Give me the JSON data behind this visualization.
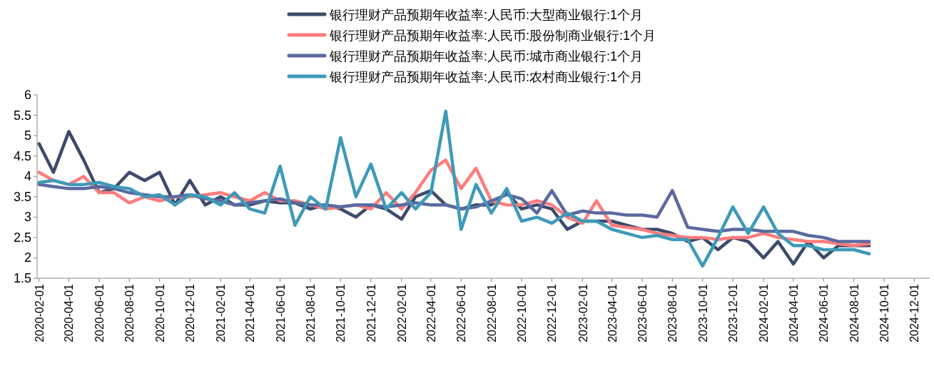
{
  "chart_data": {
    "type": "line",
    "legend": "top",
    "grid": false,
    "line_style": "solid",
    "marker": "none",
    "x": [
      "2020-02-01",
      "2020-03-01",
      "2020-04-01",
      "2020-05-01",
      "2020-06-01",
      "2020-07-01",
      "2020-08-01",
      "2020-09-01",
      "2020-10-01",
      "2020-11-01",
      "2020-12-01",
      "2021-01-01",
      "2021-02-01",
      "2021-03-01",
      "2021-04-01",
      "2021-05-01",
      "2021-06-01",
      "2021-07-01",
      "2021-08-01",
      "2021-09-01",
      "2021-10-01",
      "2021-11-01",
      "2021-12-01",
      "2022-01-01",
      "2022-02-01",
      "2022-03-01",
      "2022-04-01",
      "2022-05-01",
      "2022-06-01",
      "2022-07-01",
      "2022-08-01",
      "2022-09-01",
      "2022-10-01",
      "2022-11-01",
      "2022-12-01",
      "2023-01-01",
      "2023-02-01",
      "2023-03-01",
      "2023-04-01",
      "2023-05-01",
      "2023-06-01",
      "2023-07-01",
      "2023-08-01",
      "2023-09-01",
      "2023-10-01",
      "2023-11-01",
      "2023-12-01",
      "2024-01-01",
      "2024-02-01",
      "2024-03-01",
      "2024-04-01",
      "2024-05-01",
      "2024-06-01",
      "2024-07-01",
      "2024-08-01",
      "2024-09-01"
    ],
    "xlim": [
      "2020-01-28",
      "2025-01-01"
    ],
    "xticks": [
      "2020-02-01",
      "2020-04-01",
      "2020-06-01",
      "2020-08-01",
      "2020-10-01",
      "2020-12-01",
      "2021-02-01",
      "2021-04-01",
      "2021-06-01",
      "2021-08-01",
      "2021-10-01",
      "2021-12-01",
      "2022-02-01",
      "2022-04-01",
      "2022-06-01",
      "2022-08-01",
      "2022-10-01",
      "2022-12-01",
      "2023-02-01",
      "2023-04-01",
      "2023-06-01",
      "2023-08-01",
      "2023-10-01",
      "2023-12-01",
      "2024-02-01",
      "2024-04-01",
      "2024-06-01",
      "2024-08-01",
      "2024-10-01",
      "2024-12-01"
    ],
    "ylim": [
      1.5,
      6
    ],
    "yticks": [
      1.5,
      2,
      2.5,
      3,
      3.5,
      4,
      4.5,
      5,
      5.5,
      6
    ],
    "series": [
      {
        "name": "银行理财产品预期年收益率:人民币:大型商业银行:1个月",
        "color": "#3d4a6b",
        "values": [
          4.8,
          4.1,
          5.1,
          4.4,
          3.6,
          3.7,
          4.1,
          3.9,
          4.1,
          3.3,
          3.9,
          3.3,
          3.5,
          3.3,
          3.3,
          3.4,
          3.35,
          3.35,
          3.2,
          3.3,
          3.2,
          3.0,
          3.3,
          3.2,
          2.95,
          3.5,
          3.65,
          3.3,
          3.2,
          3.3,
          3.3,
          3.6,
          3.2,
          3.3,
          3.2,
          2.7,
          2.9,
          2.9,
          2.9,
          2.8,
          2.7,
          2.7,
          2.6,
          2.4,
          2.5,
          2.2,
          2.5,
          2.4,
          2.0,
          2.4,
          1.85,
          2.4,
          2.0,
          2.3,
          2.3,
          2.3
        ]
      },
      {
        "name": "银行理财产品预期年收益率:人民币:股份制商业银行:1个月",
        "color": "#ff7c7c",
        "values": [
          4.1,
          3.9,
          3.8,
          4.0,
          3.6,
          3.6,
          3.35,
          3.5,
          3.4,
          3.5,
          3.5,
          3.55,
          3.6,
          3.5,
          3.4,
          3.6,
          3.4,
          3.4,
          3.3,
          3.2,
          3.25,
          3.3,
          3.2,
          3.6,
          3.2,
          3.6,
          4.15,
          4.4,
          3.7,
          4.2,
          3.4,
          3.3,
          3.3,
          3.4,
          3.3,
          3.0,
          2.85,
          3.4,
          2.8,
          2.75,
          2.7,
          2.6,
          2.55,
          2.5,
          2.5,
          2.45,
          2.5,
          2.5,
          2.6,
          2.5,
          2.45,
          2.4,
          2.4,
          2.35,
          2.3,
          2.35
        ]
      },
      {
        "name": "银行理财产品预期年收益率:人民币:城市商业银行:1个月",
        "color": "#5a6aa0",
        "values": [
          3.8,
          3.75,
          3.7,
          3.7,
          3.75,
          3.7,
          3.6,
          3.55,
          3.5,
          3.5,
          3.55,
          3.45,
          3.4,
          3.3,
          3.35,
          3.4,
          3.45,
          3.35,
          3.3,
          3.3,
          3.25,
          3.3,
          3.3,
          3.25,
          3.3,
          3.35,
          3.3,
          3.3,
          3.2,
          3.25,
          3.4,
          3.55,
          3.45,
          3.1,
          3.65,
          3.05,
          3.15,
          3.1,
          3.1,
          3.05,
          3.05,
          3.0,
          3.65,
          2.75,
          2.7,
          2.65,
          2.7,
          2.7,
          2.65,
          2.65,
          2.65,
          2.55,
          2.5,
          2.4,
          2.4,
          2.4
        ]
      },
      {
        "name": "银行理财产品预期年收益率:人民币:农村商业银行:1个月",
        "color": "#3e9ab8",
        "values": [
          3.85,
          3.9,
          3.8,
          3.8,
          3.85,
          3.75,
          3.7,
          3.5,
          3.55,
          3.3,
          3.55,
          3.5,
          3.3,
          3.6,
          3.2,
          3.1,
          4.25,
          2.8,
          3.5,
          3.2,
          4.95,
          3.5,
          4.3,
          3.2,
          3.6,
          3.2,
          3.6,
          5.6,
          2.7,
          3.8,
          3.1,
          3.7,
          2.9,
          3.0,
          2.85,
          3.1,
          2.9,
          2.9,
          2.7,
          2.6,
          2.5,
          2.55,
          2.45,
          2.45,
          1.8,
          2.5,
          3.25,
          2.6,
          3.25,
          2.6,
          2.3,
          2.3,
          2.2,
          2.2,
          2.2,
          2.1
        ]
      }
    ]
  }
}
